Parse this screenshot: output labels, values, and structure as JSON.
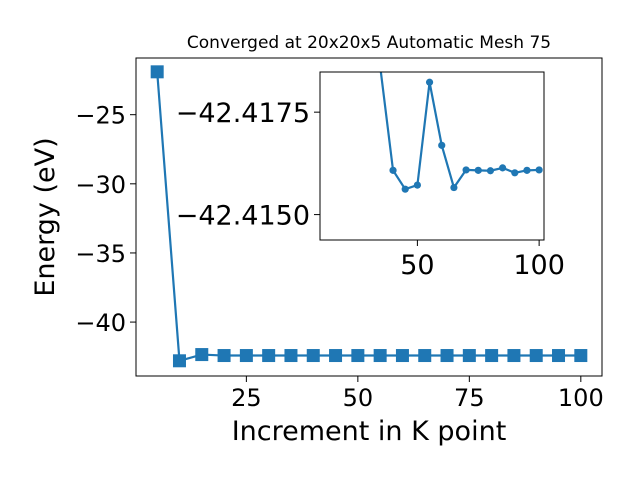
{
  "chart_data": [
    {
      "type": "line",
      "title": "Converged at 20x20x5 Automatic Mesh 75",
      "xlabel": "Increment in K point",
      "ylabel": "Energy (eV)",
      "xlim": [
        0.25,
        104.75
      ],
      "ylim": [
        -43.9,
        -20.9
      ],
      "xticks": [
        25,
        50,
        75,
        100
      ],
      "xtick_labels": [
        "25",
        "50",
        "75",
        "100"
      ],
      "yticks": [
        -40,
        -35,
        -30,
        -25
      ],
      "ytick_labels": [
        "−40",
        "−35",
        "−30",
        "−25"
      ],
      "marker": "square",
      "color": "#1f77b4",
      "grid": false,
      "series": [
        {
          "x": [
            5,
            10,
            15,
            20,
            25,
            30,
            35,
            40,
            45,
            50,
            55,
            60,
            65,
            70,
            75,
            80,
            85,
            90,
            95,
            100
          ],
          "y": [
            -21.9,
            -42.8,
            -42.35,
            -42.42,
            -42.42,
            -42.42,
            -42.42,
            -42.42,
            -42.42,
            -42.42,
            -42.42,
            -42.42,
            -42.42,
            -42.42,
            -42.42,
            -42.42,
            -42.42,
            -42.42,
            -42.42,
            -42.42
          ]
        }
      ]
    },
    {
      "type": "line",
      "inset": true,
      "xlim": [
        10,
        102
      ],
      "ylim": [
        -42.41438,
        -42.41848
      ],
      "xticks": [
        50,
        100
      ],
      "xtick_labels": [
        "50",
        "100"
      ],
      "yticks": [
        -42.4175,
        -42.415
      ],
      "ytick_labels": [
        "−42.4175",
        "−42.4150"
      ],
      "marker": "circle",
      "color": "#1f77b4",
      "grid": false,
      "series": [
        {
          "x": [
            40,
            45,
            50,
            55,
            60,
            65,
            70,
            75,
            80,
            85,
            90,
            95,
            100
          ],
          "y": [
            -42.41608,
            -42.41562,
            -42.41572,
            -42.41823,
            -42.41669,
            -42.41566,
            -42.41609,
            -42.41608,
            -42.41607,
            -42.41614,
            -42.41602,
            -42.41608,
            -42.41609
          ],
          "enters_from_above_at": 35
        }
      ]
    }
  ]
}
